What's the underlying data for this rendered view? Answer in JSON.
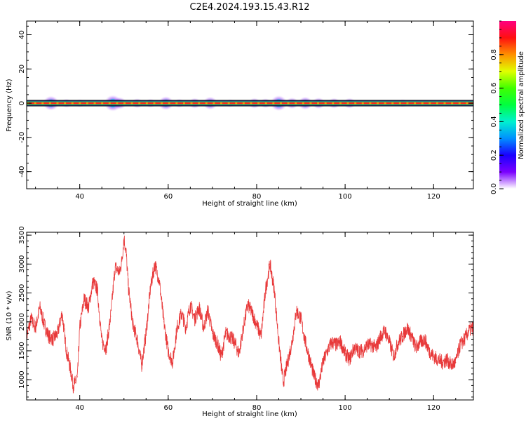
{
  "figure": {
    "title": "C2E4.2024.193.15.43.R12"
  },
  "chart_data": [
    {
      "type": "heatmap",
      "xlabel": "Height of straight line (km)",
      "ylabel": "Frequency (Hz)",
      "xlim": [
        28,
        129
      ],
      "ylim": [
        -50,
        48
      ],
      "xticks": [
        40,
        60,
        80,
        100,
        120
      ],
      "yticks": [
        -40,
        -20,
        0,
        20,
        40
      ],
      "colorbar": {
        "label": "Normalized spectral amplitude",
        "range": [
          0,
          1
        ],
        "ticks": [
          0.0,
          0.2,
          0.4,
          0.6,
          0.8
        ]
      },
      "band_center_hz": 0,
      "spectral_blobs": [
        {
          "x": 33.5,
          "amp": 0.55
        },
        {
          "x": 37,
          "amp": 0.2
        },
        {
          "x": 40,
          "amp": 0.15
        },
        {
          "x": 47.5,
          "amp": 0.65
        },
        {
          "x": 49,
          "amp": 0.4
        },
        {
          "x": 53,
          "amp": 0.25
        },
        {
          "x": 56,
          "amp": 0.2
        },
        {
          "x": 59.5,
          "amp": 0.5
        },
        {
          "x": 62.5,
          "amp": 0.2
        },
        {
          "x": 66,
          "amp": 0.3
        },
        {
          "x": 69.5,
          "amp": 0.45
        },
        {
          "x": 74,
          "amp": 0.15
        },
        {
          "x": 79.5,
          "amp": 0.3
        },
        {
          "x": 82,
          "amp": 0.25
        },
        {
          "x": 85,
          "amp": 0.6
        },
        {
          "x": 88,
          "amp": 0.35
        },
        {
          "x": 91,
          "amp": 0.45
        },
        {
          "x": 94,
          "amp": 0.35
        },
        {
          "x": 97.5,
          "amp": 0.3
        },
        {
          "x": 101,
          "amp": 0.3
        },
        {
          "x": 113,
          "amp": 0.15
        }
      ]
    },
    {
      "type": "line",
      "xlabel": "Height of straight line (km)",
      "ylabel": "SNR (10 * v/v)",
      "xlim": [
        28,
        129
      ],
      "ylim": [
        650,
        3550
      ],
      "xticks": [
        40,
        60,
        80,
        100,
        120
      ],
      "yticks": [
        1000,
        1500,
        2000,
        2500,
        3000,
        3500
      ],
      "series": [
        {
          "color": "#e8393a",
          "x": [
            28,
            29,
            30,
            31,
            32,
            33,
            34,
            35,
            36,
            37,
            38,
            38.5,
            39,
            39.5,
            40,
            41,
            42,
            43,
            44,
            45,
            46,
            47,
            48,
            49,
            49.5,
            50,
            50.5,
            51,
            52,
            53,
            54,
            55,
            56,
            57,
            58,
            59,
            60,
            61,
            62,
            63,
            64,
            65,
            66,
            67,
            68,
            69,
            70,
            71,
            72,
            73,
            74,
            75,
            76,
            77,
            78,
            79,
            80,
            81,
            82,
            83,
            84,
            85,
            86,
            87,
            88,
            89,
            90,
            91,
            92,
            93,
            94,
            95,
            96,
            97,
            98,
            99,
            100,
            101,
            102,
            103,
            104,
            105,
            106,
            107,
            108,
            109,
            110,
            111,
            112,
            113,
            114,
            115,
            116,
            117,
            118,
            119,
            120,
            121,
            122,
            123,
            124,
            125,
            126,
            127,
            128,
            129
          ],
          "y": [
            1750,
            2050,
            1900,
            2250,
            1950,
            1750,
            1700,
            1800,
            2150,
            1500,
            1150,
            900,
            950,
            1050,
            1900,
            2400,
            2250,
            2700,
            2550,
            1650,
            1550,
            2100,
            2950,
            2850,
            3050,
            3450,
            3200,
            2600,
            1950,
            1700,
            1250,
            1800,
            2600,
            3000,
            2700,
            2000,
            1500,
            1300,
            1900,
            2150,
            1900,
            2300,
            2050,
            2250,
            1900,
            2200,
            1800,
            1650,
            1400,
            1800,
            1750,
            1650,
            1450,
            1900,
            2300,
            2150,
            1950,
            1750,
            2550,
            3000,
            2550,
            1650,
            950,
            1300,
            1650,
            2200,
            2050,
            1650,
            1350,
            1050,
            900,
            1300,
            1500,
            1650,
            1600,
            1650,
            1450,
            1350,
            1550,
            1500,
            1500,
            1600,
            1600,
            1550,
            1750,
            1850,
            1650,
            1400,
            1650,
            1750,
            1900,
            1750,
            1550,
            1650,
            1700,
            1500,
            1400,
            1350,
            1300,
            1350,
            1250,
            1300,
            1600,
            1700,
            1850,
            1900
          ]
        }
      ]
    }
  ]
}
